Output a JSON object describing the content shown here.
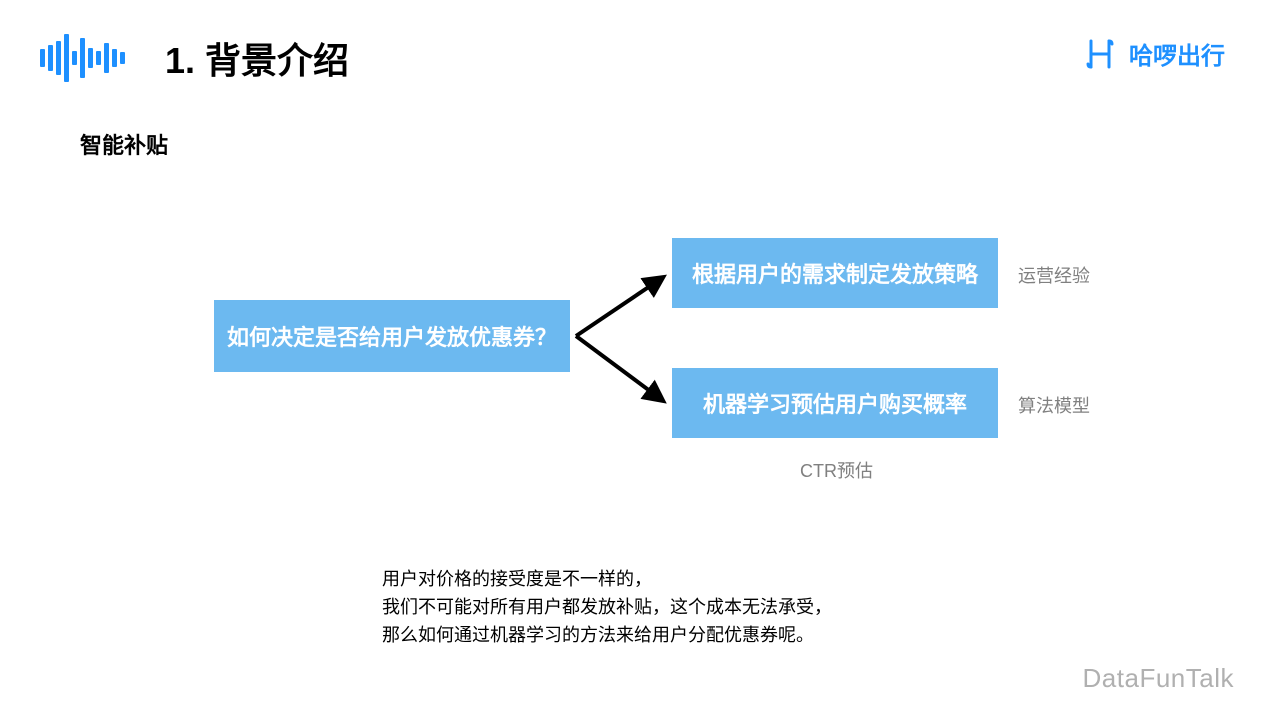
{
  "header": {
    "title": "1. 背景介绍",
    "icon_bar_heights": [
      18,
      26,
      34,
      48,
      14,
      40,
      20,
      14,
      30,
      18,
      12
    ],
    "icon_color": "#1e90ff"
  },
  "brand": {
    "text": "哈啰出行",
    "logo_color": "#1e90ff"
  },
  "subtitle": "智能补贴",
  "diagram": {
    "type": "flowchart",
    "box_color": "#6cb9f0",
    "box_text_color": "#ffffff",
    "arrow_color": "#000000",
    "arrow_stroke_width": 4,
    "left_box": "如何决定是否给用户发放优惠券？",
    "right_box_1": "根据用户的需求制定发放策略",
    "right_box_2": "机器学习预估用户购买概率",
    "side_label_1": "运营经验",
    "side_label_2": "算法模型",
    "below_label": "CTR预估",
    "side_label_color": "#808080"
  },
  "footer_lines": {
    "l1": "用户对价格的接受度是不一样的，",
    "l2": "我们不可能对所有用户都发放补贴，这个成本无法承受，",
    "l3": "那么如何通过机器学习的方法来给用户分配优惠券呢。"
  },
  "watermark": "DataFunTalk"
}
